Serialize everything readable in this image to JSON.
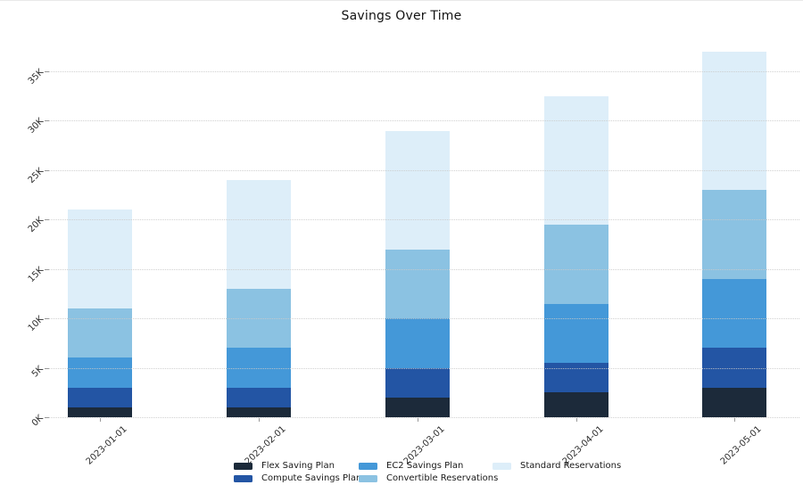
{
  "title": "Savings Over Time",
  "chart_data": {
    "type": "bar",
    "stacked": true,
    "title": "Savings Over Time",
    "xlabel": "",
    "ylabel": "",
    "categories": [
      "2023-01-01",
      "2023-02-01",
      "2023-03-01",
      "2023-04-01",
      "2023-05-01"
    ],
    "series": [
      {
        "name": "Flex Saving Plan",
        "color": "#1c2a3a",
        "values": [
          1000,
          1000,
          2000,
          2500,
          3000
        ]
      },
      {
        "name": "Compute Savings Plan",
        "color": "#2355a4",
        "values": [
          2000,
          2000,
          3000,
          3000,
          4000
        ]
      },
      {
        "name": "EC2 Savings Plan",
        "color": "#4498d8",
        "values": [
          3000,
          4000,
          5000,
          6000,
          7000
        ]
      },
      {
        "name": "Convertible Reservations",
        "color": "#8bc2e2",
        "values": [
          5000,
          6000,
          7000,
          8000,
          9000
        ]
      },
      {
        "name": "Standard Reservations",
        "color": "#ddeef9",
        "values": [
          10000,
          11000,
          12000,
          13000,
          14000
        ]
      }
    ],
    "totals": [
      21000,
      24000,
      29000,
      32500,
      37000
    ],
    "ylim": [
      0,
      37000
    ],
    "ytick_labels": [
      "0K",
      "5K",
      "10K",
      "15K",
      "20K",
      "25K",
      "30K",
      "35K"
    ],
    "ytick_values": [
      0,
      5000,
      10000,
      15000,
      20000,
      25000,
      30000,
      35000
    ],
    "grid": "horizontal-dotted",
    "legend_position": "bottom",
    "legend_order": [
      "Flex Saving Plan",
      "Compute Savings Plan",
      "EC2 Savings Plan",
      "Convertible Reservations",
      "Standard Reservations"
    ]
  }
}
